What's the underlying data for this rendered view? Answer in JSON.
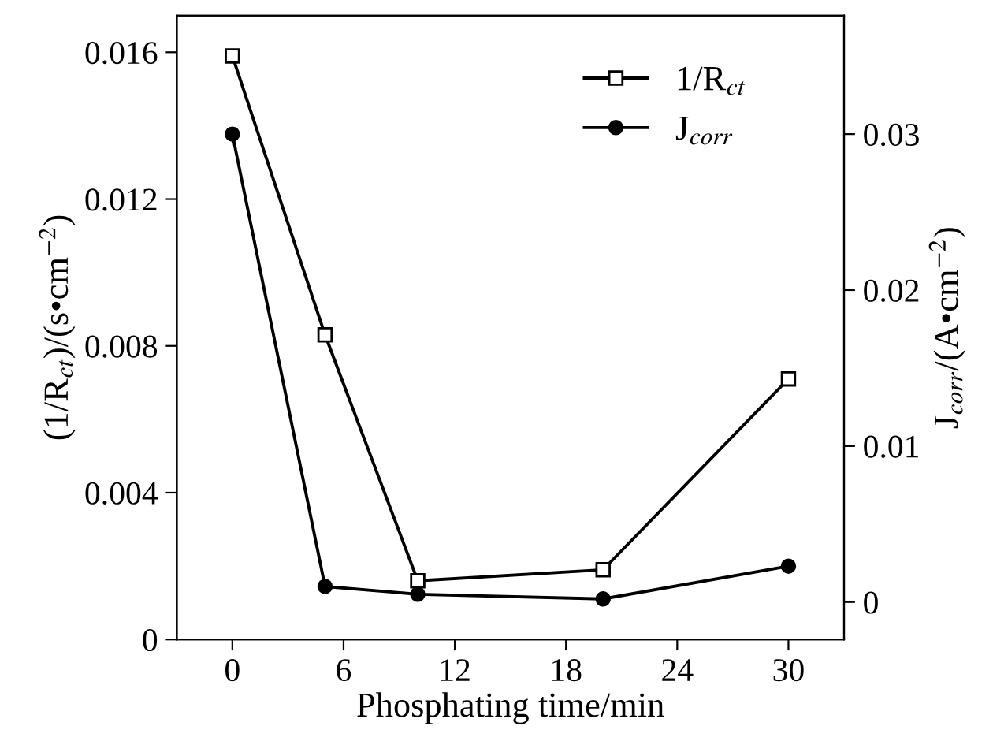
{
  "chart_data": {
    "type": "line",
    "xlabel": "Phosphating time/min",
    "ylabel": "(1/R$_{ct}$)/(s•cm$^{−2}$)",
    "y2label": "J$_{corr}$/(A•cm$^{−2}$)",
    "x": [
      0,
      5,
      10,
      20,
      30
    ],
    "series": [
      {
        "name": "1/R$_{ct}$",
        "color": "#000000",
        "marker": "square",
        "values": [
          0.0159,
          0.0083,
          0.0016,
          0.0019,
          0.0071
        ]
      },
      {
        "name": "J$_{corr}$",
        "color": "#000000",
        "marker": "circle",
        "axis": "y2",
        "values": [
          0.03,
          0.001,
          0.0005,
          0.0002,
          0.0023
        ]
      }
    ],
    "xlim": [
      -3,
      33
    ],
    "xticks": [
      0,
      6,
      12,
      18,
      24,
      30
    ],
    "ylim": [
      0,
      0.017
    ],
    "yticks": [
      {
        "value": 0,
        "label": "0"
      },
      {
        "value": 0.004,
        "label": "0.004"
      },
      {
        "value": 0.008,
        "label": "0.008"
      },
      {
        "value": 0.012,
        "label": "0.012"
      },
      {
        "value": 0.016,
        "label": "0.016"
      }
    ],
    "y2lim": [
      -0.0024,
      0.0376
    ],
    "y2ticks": [
      {
        "value": 0,
        "label": "0"
      },
      {
        "value": 0.01,
        "label": "0.01"
      },
      {
        "value": 0.02,
        "label": "0.02"
      },
      {
        "value": 0.03,
        "label": "0.03"
      }
    ],
    "legend": "top right",
    "line_style": "solid",
    "grid": false
  }
}
